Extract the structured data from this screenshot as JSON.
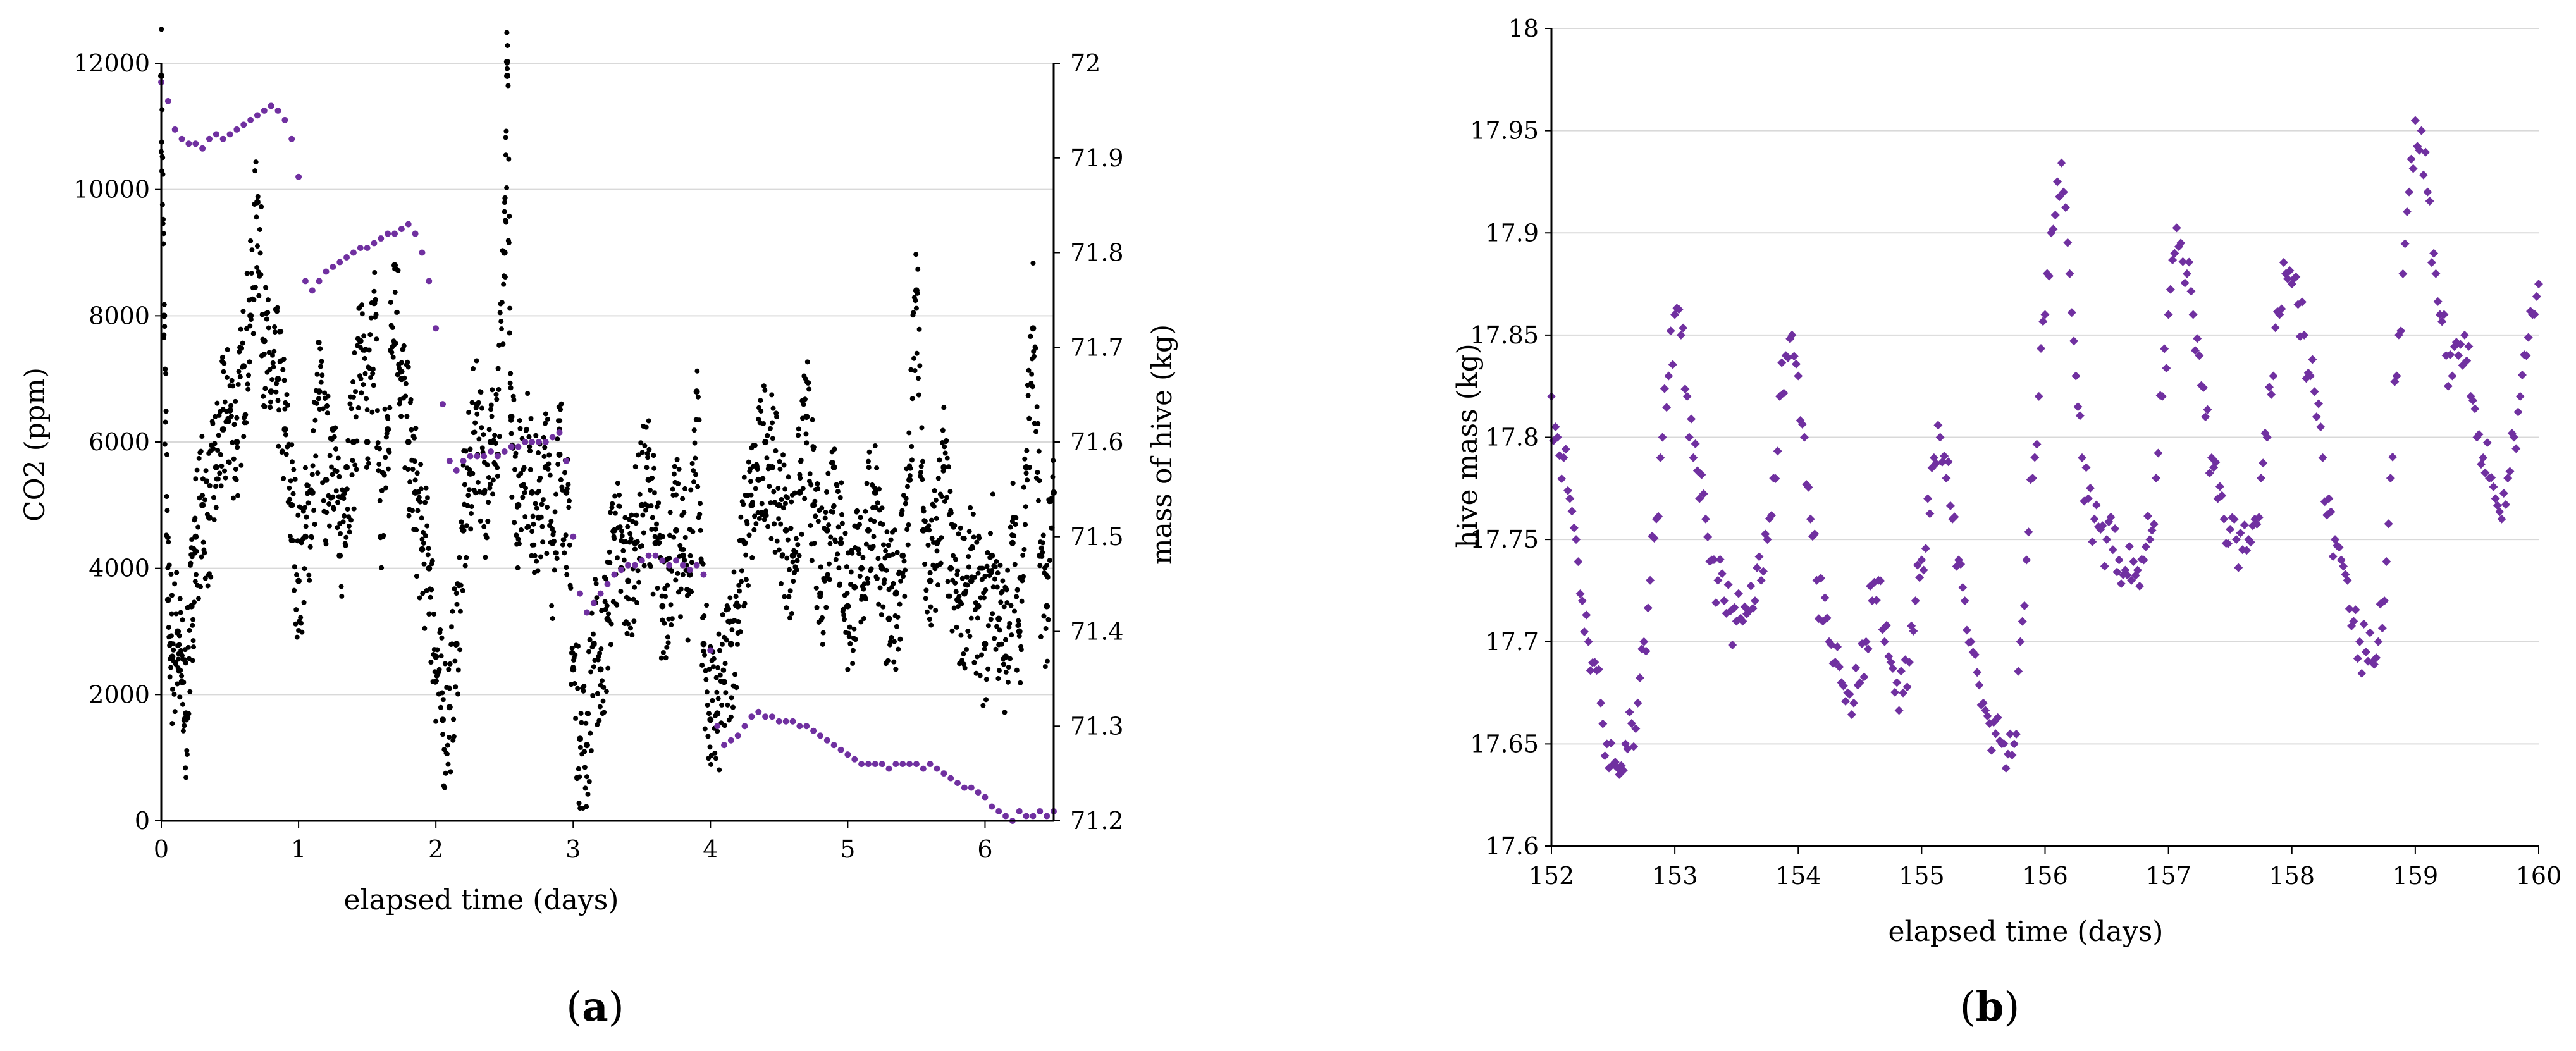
{
  "figure": {
    "panels": [
      "a",
      "b"
    ]
  },
  "colors": {
    "co2": "#000000",
    "mass": "#7030a0",
    "grid": "#d9d9d9",
    "axis": "#000000"
  },
  "chart_data": [
    {
      "type": "scatter",
      "label": "a",
      "xlabel": "elapsed time (days)",
      "ylabel": "CO2 (ppm)",
      "y2label": "mass of hive (kg)",
      "xlim": [
        0,
        6.5
      ],
      "ylim": [
        0,
        12000
      ],
      "y2lim": [
        71.2,
        72.0
      ],
      "x_ticks": [
        0,
        1,
        2,
        3,
        4,
        5,
        6
      ],
      "y_ticks": [
        0,
        2000,
        4000,
        6000,
        8000,
        10000,
        12000
      ],
      "y2_ticks": [
        71.2,
        71.3,
        71.4,
        71.5,
        71.6,
        71.7,
        71.8,
        71.9,
        72
      ],
      "grid": "horizontal",
      "series": [
        {
          "axis": "left",
          "color": "#000000",
          "x": [
            0,
            0.02,
            0.05,
            0.08,
            0.12,
            0.15,
            0.18,
            0.22,
            0.25,
            0.3,
            0.35,
            0.4,
            0.45,
            0.5,
            0.55,
            0.6,
            0.65,
            0.7,
            0.75,
            0.8,
            0.85,
            0.9,
            0.95,
            1.0,
            1.05,
            1.1,
            1.15,
            1.2,
            1.25,
            1.3,
            1.35,
            1.4,
            1.45,
            1.5,
            1.55,
            1.6,
            1.65,
            1.7,
            1.75,
            1.8,
            1.85,
            1.9,
            1.95,
            2.0,
            2.05,
            2.1,
            2.15,
            2.2,
            2.25,
            2.3,
            2.35,
            2.4,
            2.45,
            2.5,
            2.52,
            2.55,
            2.6,
            2.65,
            2.7,
            2.75,
            2.8,
            2.85,
            2.9,
            2.95,
            3.0,
            3.05,
            3.1,
            3.15,
            3.2,
            3.25,
            3.3,
            3.35,
            3.4,
            3.45,
            3.5,
            3.55,
            3.6,
            3.65,
            3.7,
            3.75,
            3.8,
            3.85,
            3.9,
            3.95,
            4.0,
            4.05,
            4.1,
            4.15,
            4.2,
            4.25,
            4.3,
            4.35,
            4.4,
            4.45,
            4.5,
            4.55,
            4.6,
            4.65,
            4.7,
            4.75,
            4.8,
            4.85,
            4.9,
            4.95,
            5.0,
            5.05,
            5.1,
            5.15,
            5.2,
            5.25,
            5.3,
            5.35,
            5.4,
            5.45,
            5.5,
            5.55,
            5.6,
            5.65,
            5.7,
            5.75,
            5.8,
            5.85,
            5.9,
            5.95,
            6.0,
            6.05,
            6.1,
            6.15,
            6.2,
            6.25,
            6.3,
            6.35,
            6.4,
            6.45,
            6.5
          ],
          "y": [
            11800,
            8000,
            3500,
            2600,
            3000,
            2200,
            1700,
            3400,
            4500,
            5000,
            4800,
            5600,
            6200,
            6500,
            6000,
            7200,
            8000,
            9800,
            7600,
            6800,
            7000,
            6200,
            5000,
            3800,
            4500,
            5200,
            6800,
            5400,
            6200,
            4200,
            5600,
            6000,
            7600,
            6000,
            8200,
            4500,
            6200,
            8800,
            7000,
            6000,
            5200,
            4300,
            4000,
            2600,
            1600,
            1800,
            2800,
            4600,
            5500,
            6600,
            5200,
            6000,
            5800,
            9000,
            11800,
            6400,
            5000,
            6000,
            5200,
            4800,
            5600,
            4400,
            5800,
            5200,
            2400,
            1300,
            1200,
            2800,
            2400,
            3200,
            4600,
            4000,
            3800,
            4400,
            5000,
            5400,
            4400,
            3400,
            4000,
            4600,
            4200,
            3900,
            6800,
            2800,
            1600,
            1700,
            2200,
            2800,
            3400,
            4400,
            5000,
            5400,
            6000,
            5600,
            5000,
            4600,
            4200,
            5200,
            6400,
            5000,
            3600,
            4600,
            5600,
            4400,
            3400,
            3700,
            4000,
            4600,
            5200,
            4000,
            3200,
            3600,
            4200,
            5400,
            8400,
            4600,
            3800,
            4400,
            5600,
            4000,
            3500,
            3600,
            3800,
            3400,
            2800,
            4200,
            3200,
            2600,
            4400,
            3000,
            5600,
            7800,
            4200,
            3400,
            5200
          ]
        },
        {
          "axis": "right",
          "color": "#7030a0",
          "x": [
            0.0,
            0.05,
            0.1,
            0.15,
            0.2,
            0.25,
            0.3,
            0.35,
            0.4,
            0.45,
            0.5,
            0.55,
            0.6,
            0.65,
            0.7,
            0.75,
            0.8,
            0.85,
            0.9,
            0.95,
            1.0,
            1.05,
            1.1,
            1.15,
            1.2,
            1.25,
            1.3,
            1.35,
            1.4,
            1.45,
            1.5,
            1.55,
            1.6,
            1.65,
            1.7,
            1.75,
            1.8,
            1.85,
            1.9,
            1.95,
            2.0,
            2.05,
            2.1,
            2.15,
            2.2,
            2.25,
            2.3,
            2.35,
            2.4,
            2.45,
            2.5,
            2.55,
            2.6,
            2.65,
            2.7,
            2.75,
            2.8,
            2.85,
            2.9,
            2.95,
            3.0,
            3.05,
            3.1,
            3.15,
            3.2,
            3.25,
            3.3,
            3.35,
            3.4,
            3.45,
            3.5,
            3.55,
            3.6,
            3.65,
            3.7,
            3.75,
            3.8,
            3.85,
            3.9,
            3.95,
            4.0,
            4.05,
            4.1,
            4.15,
            4.2,
            4.25,
            4.3,
            4.35,
            4.4,
            4.45,
            4.5,
            4.55,
            4.6,
            4.65,
            4.7,
            4.75,
            4.8,
            4.85,
            4.9,
            4.95,
            5.0,
            5.05,
            5.1,
            5.15,
            5.2,
            5.25,
            5.3,
            5.35,
            5.4,
            5.45,
            5.5,
            5.55,
            5.6,
            5.65,
            5.7,
            5.75,
            5.8,
            5.85,
            5.9,
            5.95,
            6.0,
            6.05,
            6.1,
            6.15,
            6.2,
            6.25,
            6.3,
            6.35,
            6.4,
            6.45,
            6.5
          ],
          "y": [
            71.98,
            71.96,
            71.93,
            71.92,
            71.915,
            71.915,
            71.91,
            71.92,
            71.925,
            71.92,
            71.925,
            71.93,
            71.935,
            71.94,
            71.945,
            71.95,
            71.955,
            71.95,
            71.94,
            71.92,
            71.88,
            71.77,
            71.76,
            71.77,
            71.78,
            71.785,
            71.79,
            71.795,
            71.8,
            71.805,
            71.805,
            71.81,
            71.815,
            71.82,
            71.82,
            71.825,
            71.83,
            71.82,
            71.8,
            71.77,
            71.72,
            71.64,
            71.58,
            71.57,
            71.58,
            71.585,
            71.585,
            71.585,
            71.59,
            71.585,
            71.59,
            71.595,
            71.595,
            71.6,
            71.6,
            71.6,
            71.6,
            71.605,
            71.61,
            71.58,
            71.5,
            71.44,
            71.42,
            71.43,
            71.44,
            71.45,
            71.46,
            71.465,
            71.47,
            71.47,
            71.475,
            71.48,
            71.48,
            71.475,
            71.47,
            71.475,
            71.47,
            71.465,
            71.47,
            71.46,
            71.38,
            71.3,
            71.28,
            71.285,
            71.29,
            71.3,
            71.31,
            71.315,
            71.31,
            71.31,
            71.305,
            71.305,
            71.305,
            71.3,
            71.3,
            71.295,
            71.29,
            71.285,
            71.28,
            71.275,
            71.27,
            71.265,
            71.26,
            71.26,
            71.26,
            71.26,
            71.255,
            71.26,
            71.26,
            71.26,
            71.26,
            71.255,
            71.26,
            71.255,
            71.25,
            71.245,
            71.24,
            71.235,
            71.235,
            71.23,
            71.225,
            71.215,
            71.21,
            71.205,
            71.2,
            71.21,
            71.205,
            71.205,
            71.21,
            71.205,
            71.21
          ]
        }
      ]
    },
    {
      "type": "scatter",
      "label": "b",
      "xlabel": "elapsed time (days)",
      "ylabel": "hive mass (kg)",
      "xlim": [
        152,
        160
      ],
      "ylim": [
        17.6,
        18.0
      ],
      "x_ticks": [
        152,
        153,
        154,
        155,
        156,
        157,
        158,
        159,
        160
      ],
      "y_ticks": [
        "17.6",
        "17.65",
        "17.7",
        "17.75",
        "17.8",
        "17.85",
        "17.9",
        "17.95",
        "18"
      ],
      "grid": "horizontal",
      "series": [
        {
          "color": "#7030a0",
          "x": [
            152.0,
            152.05,
            152.1,
            152.15,
            152.2,
            152.25,
            152.3,
            152.35,
            152.4,
            152.45,
            152.5,
            152.55,
            152.6,
            152.65,
            152.7,
            152.75,
            152.8,
            152.85,
            152.9,
            152.95,
            153.0,
            153.05,
            153.1,
            153.15,
            153.2,
            153.25,
            153.3,
            153.35,
            153.4,
            153.45,
            153.5,
            153.55,
            153.6,
            153.65,
            153.7,
            153.75,
            153.8,
            153.85,
            153.9,
            153.95,
            154.0,
            154.05,
            154.1,
            154.15,
            154.2,
            154.25,
            154.3,
            154.35,
            154.4,
            154.45,
            154.5,
            154.55,
            154.6,
            154.65,
            154.7,
            154.75,
            154.8,
            154.85,
            154.9,
            154.95,
            155.0,
            155.05,
            155.1,
            155.15,
            155.2,
            155.25,
            155.3,
            155.35,
            155.4,
            155.45,
            155.5,
            155.55,
            155.6,
            155.65,
            155.7,
            155.75,
            155.8,
            155.85,
            155.9,
            155.95,
            156.0,
            156.05,
            156.1,
            156.15,
            156.2,
            156.25,
            156.3,
            156.35,
            156.4,
            156.45,
            156.5,
            156.55,
            156.6,
            156.65,
            156.7,
            156.75,
            156.8,
            156.85,
            156.9,
            156.95,
            157.0,
            157.05,
            157.1,
            157.15,
            157.2,
            157.25,
            157.3,
            157.35,
            157.4,
            157.45,
            157.5,
            157.55,
            157.6,
            157.65,
            157.7,
            157.75,
            157.8,
            157.85,
            157.9,
            157.95,
            158.0,
            158.05,
            158.1,
            158.15,
            158.2,
            158.25,
            158.3,
            158.35,
            158.4,
            158.45,
            158.5,
            158.55,
            158.6,
            158.65,
            158.7,
            158.75,
            158.8,
            158.85,
            158.9,
            158.95,
            159.0,
            159.05,
            159.1,
            159.15,
            159.2,
            159.25,
            159.3,
            159.35,
            159.4,
            159.45,
            159.5,
            159.55,
            159.6,
            159.65,
            159.7,
            159.75,
            159.8,
            159.85,
            159.9,
            159.95,
            160.0
          ],
          "y": [
            17.82,
            17.8,
            17.79,
            17.77,
            17.75,
            17.72,
            17.7,
            17.69,
            17.67,
            17.65,
            17.64,
            17.635,
            17.65,
            17.66,
            17.67,
            17.7,
            17.73,
            17.76,
            17.8,
            17.83,
            17.86,
            17.85,
            17.82,
            17.79,
            17.77,
            17.76,
            17.74,
            17.73,
            17.72,
            17.715,
            17.71,
            17.71,
            17.715,
            17.72,
            17.73,
            17.75,
            17.78,
            17.82,
            17.84,
            17.85,
            17.83,
            17.8,
            17.76,
            17.73,
            17.71,
            17.7,
            17.69,
            17.68,
            17.675,
            17.67,
            17.68,
            17.7,
            17.72,
            17.73,
            17.7,
            17.69,
            17.68,
            17.675,
            17.69,
            17.72,
            17.74,
            17.77,
            17.79,
            17.8,
            17.78,
            17.76,
            17.74,
            17.72,
            17.7,
            17.685,
            17.67,
            17.66,
            17.655,
            17.65,
            17.645,
            17.65,
            17.7,
            17.74,
            17.78,
            17.82,
            17.86,
            17.9,
            17.925,
            17.92,
            17.88,
            17.83,
            17.79,
            17.77,
            17.76,
            17.755,
            17.75,
            17.745,
            17.74,
            17.735,
            17.73,
            17.735,
            17.74,
            17.75,
            17.78,
            17.82,
            17.86,
            17.89,
            17.895,
            17.88,
            17.86,
            17.84,
            17.81,
            17.79,
            17.77,
            17.76,
            17.755,
            17.75,
            17.745,
            17.75,
            17.76,
            17.78,
            17.8,
            17.83,
            17.86,
            17.88,
            17.875,
            17.865,
            17.85,
            17.83,
            17.81,
            17.79,
            17.77,
            17.75,
            17.74,
            17.73,
            17.71,
            17.7,
            17.695,
            17.69,
            17.7,
            17.72,
            17.78,
            17.83,
            17.88,
            17.92,
            17.955,
            17.95,
            17.92,
            17.89,
            17.86,
            17.84,
            17.83,
            17.84,
            17.85,
            17.82,
            17.8,
            17.79,
            17.78,
            17.77,
            17.76,
            17.78,
            17.8,
            17.82,
            17.84,
            17.86,
            17.875
          ]
        }
      ]
    }
  ]
}
